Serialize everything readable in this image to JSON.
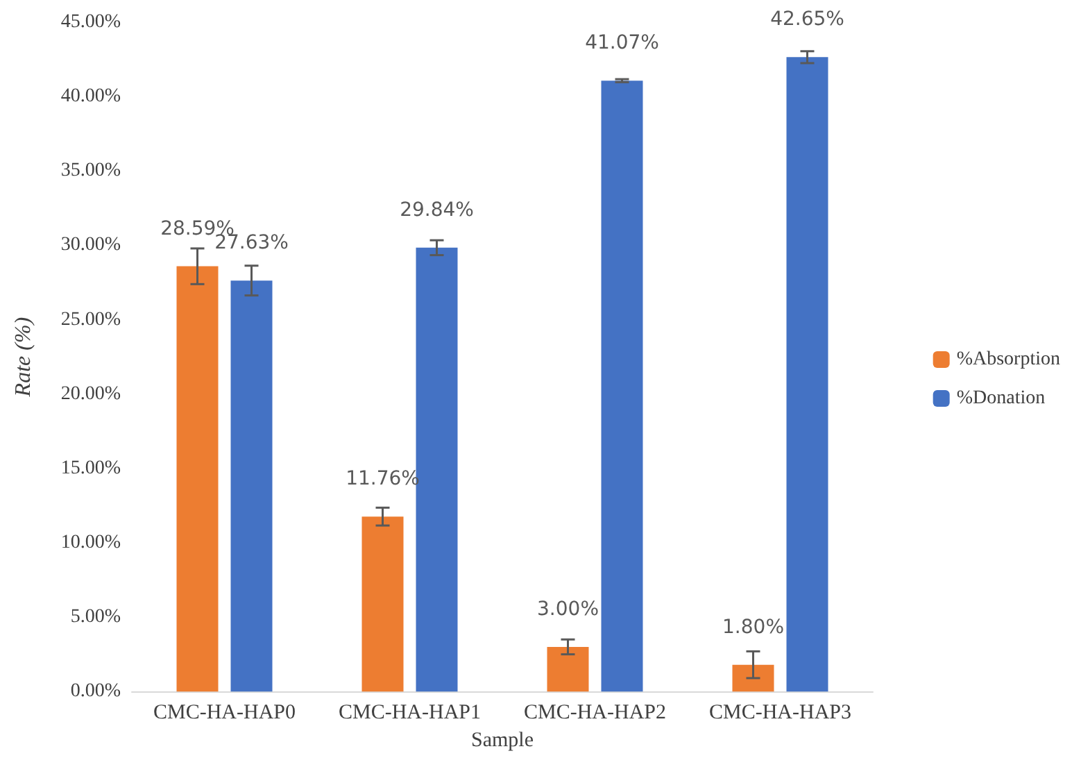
{
  "chart_data": {
    "type": "bar",
    "xlabel": "Sample",
    "ylabel": "Rate (%)",
    "categories": [
      "CMC-HA-HAP0",
      "CMC-HA-HAP1",
      "CMC-HA-HAP2",
      "CMC-HA-HAP3"
    ],
    "series": [
      {
        "name": "%Absorption",
        "color": "#ed7d31",
        "values": [
          28.59,
          11.76,
          3.0,
          1.8
        ],
        "errors": [
          1.2,
          0.6,
          0.5,
          0.9
        ],
        "value_labels": [
          "28.59%",
          "11.76%",
          "3.00%",
          "1.80%"
        ]
      },
      {
        "name": "%Donation",
        "color": "#4472c4",
        "values": [
          27.63,
          29.84,
          41.07,
          42.65
        ],
        "errors": [
          1.0,
          0.5,
          0.1,
          0.4
        ],
        "value_labels": [
          "27.63%",
          "29.84%",
          "41.07%",
          "42.65%"
        ]
      }
    ],
    "ylim": [
      0,
      45
    ],
    "yticks": [
      {
        "value": 0,
        "label": "0.00%"
      },
      {
        "value": 5,
        "label": "5.00%"
      },
      {
        "value": 10,
        "label": "10.00%"
      },
      {
        "value": 15,
        "label": "15.00%"
      },
      {
        "value": 20,
        "label": "20.00%"
      },
      {
        "value": 25,
        "label": "25.00%"
      },
      {
        "value": 30,
        "label": "30.00%"
      },
      {
        "value": 35,
        "label": "35.00%"
      },
      {
        "value": 40,
        "label": "40.00%"
      },
      {
        "value": 45,
        "label": "45.00%"
      }
    ],
    "grid": false,
    "legend": "right"
  }
}
